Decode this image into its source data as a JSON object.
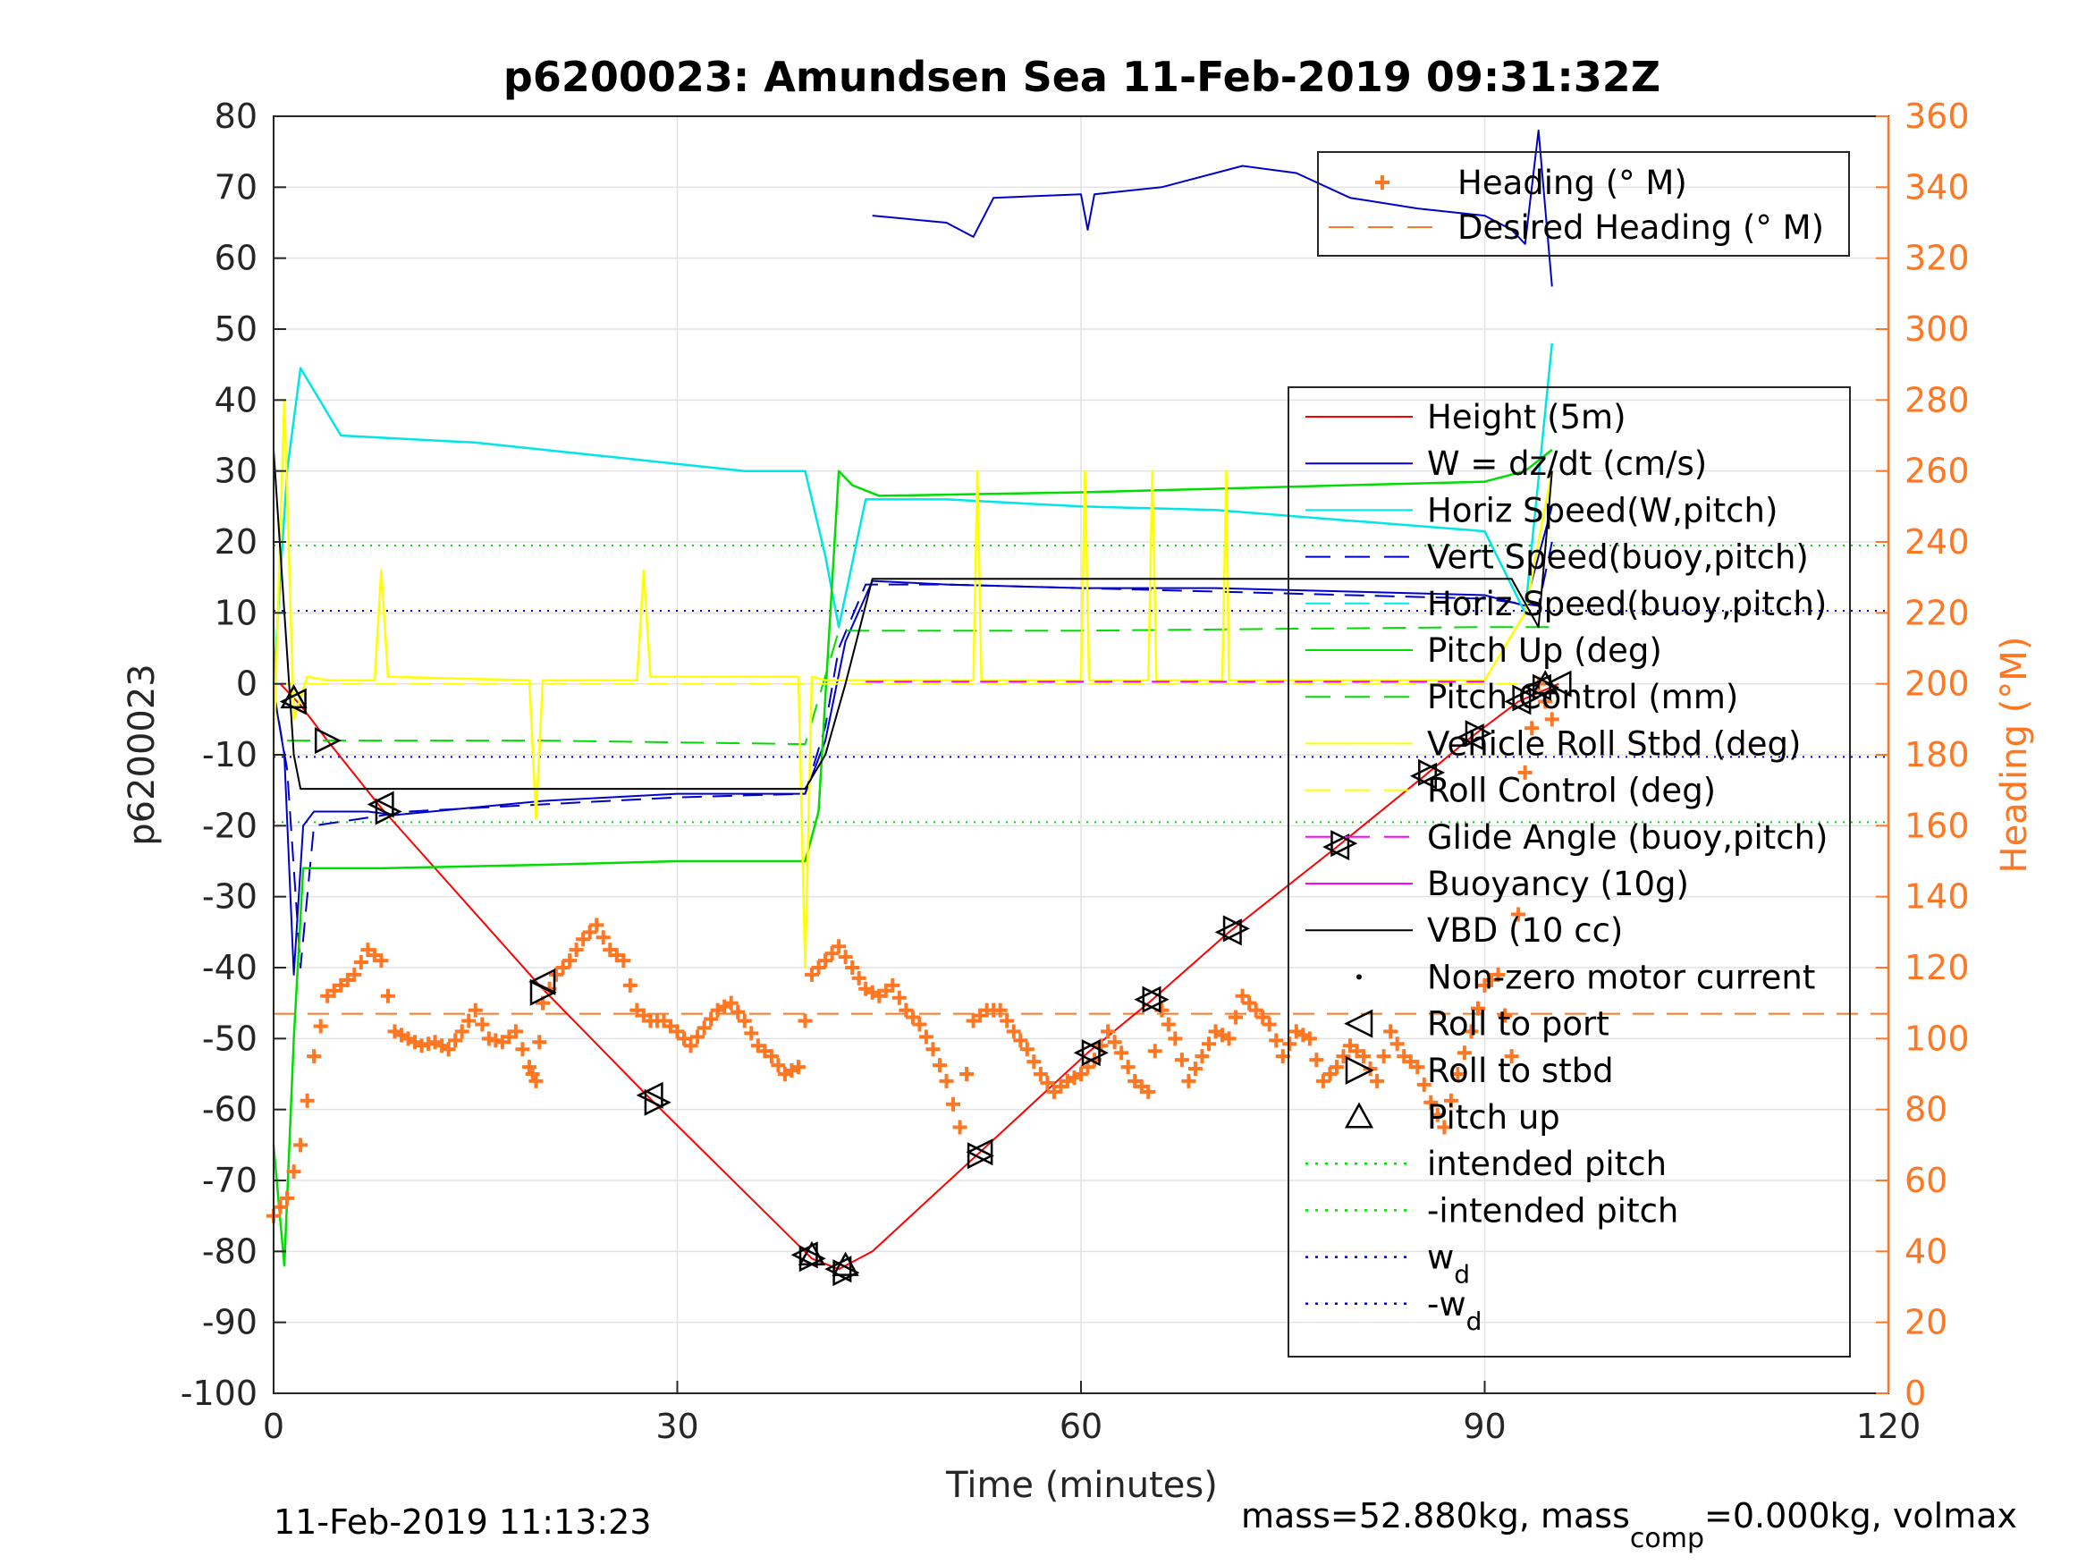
{
  "chart_data": {
    "type": "line",
    "title": "p6200023: Amundsen Sea 11-Feb-2019 09:31:32Z",
    "xlabel": "Time (minutes)",
    "ylabel": "p6200023",
    "ylabel_right": "Heading (°M)",
    "xlim": [
      0,
      120
    ],
    "ylim": [
      -100,
      80
    ],
    "ylim_right": [
      0,
      360
    ],
    "xticks": [
      "0",
      "30",
      "60",
      "90",
      "120"
    ],
    "yticks": [
      "80",
      "70",
      "60",
      "50",
      "40",
      "30",
      "20",
      "10",
      "0",
      "-10",
      "-20",
      "-30",
      "-40",
      "-50",
      "-60",
      "-70",
      "-80",
      "-90",
      "-100"
    ],
    "yticks_right": [
      "360",
      "340",
      "320",
      "300",
      "280",
      "260",
      "240",
      "220",
      "200",
      "180",
      "160",
      "140",
      "120",
      "100",
      "80",
      "60",
      "40",
      "20",
      "0"
    ],
    "grid": true,
    "footer_left": "11-Feb-2019 11:13:23",
    "footer_right_parts": [
      "mass=52.880kg, mass",
      "comp",
      "=0.000kg, volmax"
    ],
    "colors": {
      "height": "#ff0000",
      "w": "#0000cc",
      "horiz": "#00e5e5",
      "pitch": "#00dd00",
      "roll": "#ffff00",
      "buoyancy": "#ff00ff",
      "vbd": "#000000",
      "heading": "#ff7722"
    },
    "legend_heading": [
      {
        "label": "Heading (° M)",
        "style": "plus",
        "color": "#ff7722"
      },
      {
        "label": "Desired Heading (° M)",
        "style": "dash",
        "color": "#ff7722"
      }
    ],
    "legend_main": [
      {
        "label": "Height (5m)",
        "style": "solid",
        "color": "#ff0000"
      },
      {
        "label": "W = dz/dt (cm/s)",
        "style": "solid",
        "color": "#0000cc"
      },
      {
        "label": "Horiz Speed(W,pitch)",
        "style": "solid",
        "color": "#00e5e5"
      },
      {
        "label": "Vert Speed(buoy,pitch)",
        "style": "dash",
        "color": "#0000cc"
      },
      {
        "label": "Horiz Speed(buoy,pitch)",
        "style": "dash",
        "color": "#00e5e5"
      },
      {
        "label": "Pitch Up (deg)",
        "style": "solid",
        "color": "#00dd00"
      },
      {
        "label": "Pitch Control (mm)",
        "style": "dash",
        "color": "#00dd00"
      },
      {
        "label": "Vehicle Roll Stbd (deg)",
        "style": "solid",
        "color": "#ffff00"
      },
      {
        "label": "Roll Control (deg)",
        "style": "dash",
        "color": "#ffff00"
      },
      {
        "label": "Glide Angle (buoy,pitch)",
        "style": "dash",
        "color": "#ff00ff"
      },
      {
        "label": "Buoyancy (10g)",
        "style": "solid",
        "color": "#ff00ff"
      },
      {
        "label": "VBD (10 cc)",
        "style": "solid",
        "color": "#000000"
      },
      {
        "label": "Non-zero motor current",
        "style": "dot",
        "color": "#000000"
      },
      {
        "label": "Roll to port",
        "style": "tri-left",
        "color": "#000000"
      },
      {
        "label": "Roll to stbd",
        "style": "tri-right",
        "color": "#000000"
      },
      {
        "label": "Pitch up",
        "style": "tri-up",
        "color": "#000000"
      },
      {
        "label": "intended pitch",
        "style": "dotted",
        "color": "#00dd00"
      },
      {
        "label": "-intended pitch",
        "style": "dotted",
        "color": "#00dd00"
      },
      {
        "label": "w",
        "sub": "d",
        "style": "dotted",
        "color": "#0000cc"
      },
      {
        "label": "-w",
        "sub": "d",
        "style": "dotted",
        "color": "#0000cc"
      }
    ],
    "reference_lines": [
      {
        "name": "intended pitch",
        "y": 19.5
      },
      {
        "name": "-intended pitch",
        "y": -19.5
      },
      {
        "name": "w_d",
        "y": 10.3
      },
      {
        "name": "-w_d",
        "y": -10.3
      },
      {
        "name": "Desired Heading",
        "y_right": 107
      }
    ],
    "series": [
      {
        "name": "Height (5m)",
        "x": [
          0.5,
          2,
          4,
          8,
          20,
          28,
          40,
          42,
          44.5,
          52.5,
          60.5,
          65,
          71,
          79,
          85.5,
          89,
          92.5,
          95.5
        ],
        "y": [
          0,
          -3,
          -8,
          -17.5,
          -43,
          -58.5,
          -81,
          -82.5,
          -80,
          -66,
          -52,
          -45,
          -35,
          -23,
          -13,
          -7.5,
          -2.5,
          0
        ]
      },
      {
        "name": "W = dz/dt (cm/s)",
        "x": [
          0,
          0.8,
          1.5,
          2.2,
          3,
          7,
          9,
          20,
          30,
          39.5,
          41,
          42.5,
          44.5,
          50,
          60,
          70,
          80,
          90,
          93,
          95
        ],
        "y": [
          -1,
          -10,
          -41,
          -20,
          -18,
          -18,
          -18.5,
          -16.5,
          -15.5,
          -15.5,
          -8,
          6,
          14.5,
          14,
          13.5,
          13.5,
          13,
          12.5,
          11,
          25
        ]
      },
      {
        "name": "W segment upper",
        "x": [
          44.5,
          50,
          52,
          53.5,
          60,
          60.5,
          61,
          66,
          72,
          76,
          80,
          85,
          90,
          92,
          93,
          94,
          95
        ],
        "y": [
          66,
          65,
          63,
          68.5,
          69,
          64,
          69,
          70,
          73,
          72,
          68.5,
          67,
          66,
          64,
          62,
          78,
          56
        ]
      },
      {
        "name": "Horiz Speed(W,pitch)",
        "x": [
          0,
          1,
          2,
          5,
          15,
          25,
          35,
          39.5,
          41,
          42,
          44,
          50,
          60,
          70,
          80,
          90,
          93,
          95
        ],
        "y": [
          0,
          30,
          44.5,
          35,
          34,
          32,
          30,
          30,
          18,
          8,
          26,
          26,
          25,
          24.5,
          23,
          21.5,
          10,
          48
        ]
      },
      {
        "name": "Vert Speed(buoy,pitch)",
        "x": [
          0,
          1,
          2,
          3,
          10,
          20,
          30,
          39.5,
          41,
          42,
          44,
          50,
          60,
          70,
          80,
          90,
          94,
          95
        ],
        "y": [
          -1,
          -12,
          -40,
          -20,
          -18,
          -17,
          -16,
          -15.5,
          -6,
          5,
          14,
          14,
          13.5,
          13,
          12.5,
          12,
          11,
          20
        ]
      },
      {
        "name": "Pitch Up (deg)",
        "x": [
          0,
          0.8,
          1.5,
          2.2,
          3,
          8,
          20,
          30,
          39.5,
          40.5,
          42,
          43,
          45,
          60,
          70,
          80,
          90,
          93,
          95
        ],
        "y": [
          -65,
          -82,
          -50,
          -26,
          -26,
          -26,
          -25.5,
          -25,
          -25,
          -18,
          30,
          28,
          26.5,
          27,
          27.5,
          28,
          28.5,
          30,
          33
        ]
      },
      {
        "name": "Pitch Control (mm)",
        "x": [
          1,
          3,
          20,
          39.5,
          42,
          44,
          60,
          90,
          95
        ],
        "y": [
          -8,
          -8,
          -8,
          -8.5,
          7.5,
          7.5,
          7.5,
          8,
          8
        ]
      },
      {
        "name": "Vehicle Roll Stbd (deg)",
        "x": [
          0,
          0.8,
          1.5,
          2.5,
          4,
          7.5,
          8,
          8.5,
          19,
          19.5,
          20,
          27,
          27.5,
          28,
          39,
          39.5,
          40,
          41,
          45,
          52,
          52.3,
          52.6,
          60,
          60.3,
          60.6,
          65,
          65.3,
          65.6,
          70.5,
          70.8,
          71,
          90,
          93,
          95
        ],
        "y": [
          -10,
          40,
          -5,
          1,
          0.5,
          0.5,
          16,
          1,
          0.5,
          -19,
          0.5,
          0.5,
          16,
          1,
          1,
          -40,
          1,
          0.5,
          0.5,
          0.5,
          30,
          0.5,
          0.5,
          30,
          0.5,
          0.5,
          30,
          0.5,
          0.5,
          30,
          0.5,
          0.5,
          10,
          30
        ]
      },
      {
        "name": "Roll Control (deg)",
        "x": [
          0,
          1,
          2,
          8,
          20,
          28,
          39,
          42,
          52.5,
          60.5,
          65,
          71,
          79,
          85.5,
          90,
          95
        ],
        "y": [
          0,
          0,
          0,
          0,
          0,
          0,
          0,
          0,
          0,
          0,
          0,
          0,
          0,
          0,
          0,
          0
        ]
      },
      {
        "name": "Glide Angle (buoy,pitch)",
        "x": [
          44,
          50,
          60,
          70,
          80,
          90
        ],
        "y": [
          0.3,
          0.3,
          0.3,
          0.3,
          0.3,
          0.3
        ]
      },
      {
        "name": "VBD (10 cc)",
        "x": [
          0,
          1.5,
          2,
          20,
          39.5,
          41,
          42.5,
          44.5,
          60,
          80,
          92,
          94,
          95
        ],
        "y": [
          33,
          -10,
          -14.8,
          -14.8,
          -14.8,
          -10,
          0,
          14.8,
          14.8,
          14.8,
          14.8,
          8,
          30
        ]
      },
      {
        "name": "Heading (° M)",
        "axis": "right",
        "x": [
          0,
          1,
          2,
          3,
          4,
          5,
          6,
          7,
          8,
          9,
          10,
          11,
          12,
          13,
          14,
          15,
          16,
          17,
          18,
          19,
          19.5,
          20,
          21,
          22,
          23,
          24,
          25,
          26,
          27,
          28,
          29,
          30,
          31,
          32,
          33,
          34,
          35,
          36,
          37,
          38,
          39,
          40,
          41,
          42,
          43,
          44,
          45,
          46,
          47,
          48,
          49,
          50,
          51,
          52,
          53,
          54,
          55,
          56,
          57,
          58,
          59,
          60,
          61,
          62,
          63,
          64,
          65,
          66,
          67,
          68,
          69,
          70,
          71,
          72,
          73,
          74,
          75,
          76,
          77,
          78,
          79,
          80,
          81,
          82,
          83,
          84,
          85,
          86,
          87,
          88,
          89,
          90,
          91,
          92,
          93,
          94,
          95
        ],
        "y": [
          50,
          55,
          70,
          95,
          112,
          115,
          118,
          125,
          122,
          102,
          100,
          98,
          99,
          97,
          102,
          108,
          100,
          99,
          102,
          92,
          88,
          110,
          118,
          122,
          128,
          132,
          125,
          122,
          108,
          105,
          105,
          102,
          98,
          103,
          108,
          110,
          105,
          98,
          95,
          90,
          92,
          118,
          122,
          126,
          120,
          114,
          112,
          115,
          108,
          104,
          97,
          88,
          75,
          105,
          108,
          108,
          102,
          97,
          90,
          85,
          88,
          90,
          94,
          102,
          96,
          88,
          85,
          108,
          100,
          88,
          95,
          102,
          100,
          112,
          108,
          104,
          95,
          102,
          100,
          88,
          92,
          98,
          95,
          88,
          102,
          95,
          92,
          82,
          75,
          90,
          102,
          115,
          118,
          95,
          175,
          200,
          190
        ]
      }
    ],
    "markers": {
      "roll_to_port": [
        [
          1.5,
          -2.5
        ],
        [
          8,
          -17
        ],
        [
          20,
          -42
        ],
        [
          28,
          -58
        ],
        [
          39.5,
          -80.5
        ],
        [
          42,
          -82.5
        ],
        [
          52.5,
          -66
        ],
        [
          60.5,
          -52
        ],
        [
          65,
          -44.5
        ],
        [
          71,
          -35
        ],
        [
          79,
          -23
        ],
        [
          85.5,
          -13
        ],
        [
          89,
          -7.5
        ],
        [
          92.5,
          -2.5
        ],
        [
          94,
          -0.5
        ],
        [
          95.5,
          0
        ]
      ],
      "roll_to_stbd": [
        [
          4,
          -8
        ],
        [
          8.5,
          -18
        ],
        [
          20,
          -43.5
        ],
        [
          28.5,
          -59
        ],
        [
          40,
          -81
        ],
        [
          42.5,
          -83
        ],
        [
          52.5,
          -66.5
        ],
        [
          61,
          -52
        ],
        [
          65.5,
          -44.5
        ],
        [
          71.5,
          -34.5
        ],
        [
          79.5,
          -22.5
        ],
        [
          86,
          -12.5
        ],
        [
          89.5,
          -7
        ],
        [
          93,
          -2
        ],
        [
          94.5,
          -0.5
        ]
      ],
      "pitch_up": [
        [
          1.5,
          -2
        ],
        [
          40,
          -80.5
        ],
        [
          42.5,
          -82
        ],
        [
          94.5,
          0
        ]
      ]
    }
  }
}
